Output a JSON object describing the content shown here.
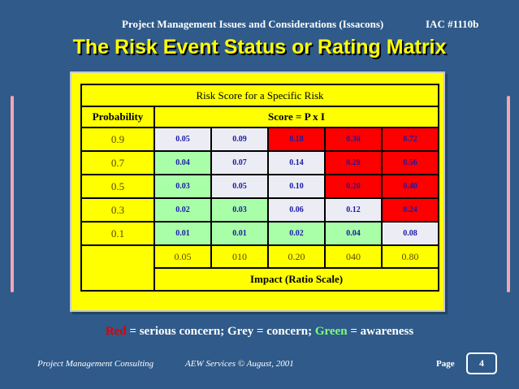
{
  "header": {
    "course": "Project Management Issues and Considerations (Issacons)",
    "id": "IAC #1110b"
  },
  "title": "The Risk Event Status or Rating Matrix",
  "matrix": {
    "caption": "Risk Score for a Specific Risk",
    "probability_label": "Probability",
    "score_label": "Score = P x I",
    "rows": [
      {
        "probability": "0.9",
        "cells": [
          {
            "v": "0.05",
            "s": "grey"
          },
          {
            "v": "0.09",
            "s": "grey"
          },
          {
            "v": "0.18",
            "s": "red"
          },
          {
            "v": "0.36",
            "s": "red"
          },
          {
            "v": "0.72",
            "s": "red"
          }
        ]
      },
      {
        "probability": "0.7",
        "cells": [
          {
            "v": "0.04",
            "s": "green"
          },
          {
            "v": "0.07",
            "s": "grey"
          },
          {
            "v": "0.14",
            "s": "grey"
          },
          {
            "v": "0.28",
            "s": "red"
          },
          {
            "v": "0.56",
            "s": "red"
          }
        ]
      },
      {
        "probability": "0.5",
        "cells": [
          {
            "v": "0.03",
            "s": "green"
          },
          {
            "v": "0.05",
            "s": "grey"
          },
          {
            "v": "0.10",
            "s": "grey"
          },
          {
            "v": "0.20",
            "s": "red"
          },
          {
            "v": "0.40",
            "s": "red"
          }
        ]
      },
      {
        "probability": "0.3",
        "cells": [
          {
            "v": "0.02",
            "s": "green"
          },
          {
            "v": "0.03",
            "s": "green"
          },
          {
            "v": "0.06",
            "s": "grey"
          },
          {
            "v": "0.12",
            "s": "grey"
          },
          {
            "v": "0.24",
            "s": "red"
          }
        ]
      },
      {
        "probability": "0.1",
        "cells": [
          {
            "v": "0.01",
            "s": "green"
          },
          {
            "v": "0.01",
            "s": "green"
          },
          {
            "v": "0.02",
            "s": "green"
          },
          {
            "v": "0.04",
            "s": "green"
          },
          {
            "v": "0.08",
            "s": "grey"
          }
        ]
      }
    ],
    "impacts": [
      "0.05",
      "010",
      "0.20",
      "040",
      "0.80"
    ],
    "impact_label": "Impact (Ratio Scale)"
  },
  "legend": {
    "red_word": "Red",
    "red_text": " = serious concern; Grey = concern; ",
    "green_word": "Green",
    "green_text": " = awareness"
  },
  "footer": {
    "left": "Project Management Consulting",
    "middle": "AEW Services © August, 2001",
    "page_label": "Page",
    "page_number": "4"
  },
  "colors": {
    "background": "#2f5a8a",
    "title": "#ffff00",
    "red": "#ff0000",
    "grey": "#ececf4",
    "green": "#a8ffa8"
  }
}
